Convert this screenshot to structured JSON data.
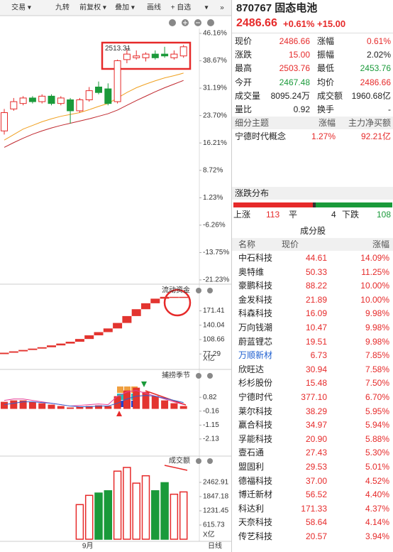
{
  "toolbar": [
    "交易 ▾",
    "九转",
    "前复权 ▾",
    "叠加 ▾",
    "画线",
    "+ 自选",
    "▾",
    "»"
  ],
  "header": {
    "title": "870767 固态电池",
    "price": "2486.66",
    "change_pct": "+0.61%",
    "change": "+15.00"
  },
  "quote": [
    {
      "label": "现价",
      "value": "2486.66",
      "color": "#e62a2a"
    },
    {
      "label": "涨幅",
      "value": "0.61%",
      "color": "#e62a2a"
    },
    {
      "label": "涨跌",
      "value": "15.00",
      "color": "#e62a2a"
    },
    {
      "label": "振幅",
      "value": "2.02%",
      "color": "#222222"
    },
    {
      "label": "最高",
      "value": "2503.76",
      "color": "#e62a2a"
    },
    {
      "label": "最低",
      "value": "2453.76",
      "color": "#1a9a3a"
    },
    {
      "label": "今开",
      "value": "2467.48",
      "color": "#1a9a3a"
    },
    {
      "label": "均价",
      "value": "2486.66",
      "color": "#e62a2a"
    },
    {
      "label": "成交量",
      "value": "8095.24万",
      "color": "#222222"
    },
    {
      "label": "成交额",
      "value": "1960.68亿",
      "color": "#222222"
    },
    {
      "label": "量比",
      "value": "0.92",
      "color": "#222222"
    },
    {
      "label": "换手",
      "value": "-",
      "color": "#222222"
    }
  ],
  "theme": {
    "header": [
      "细分主题",
      "涨幅",
      "主力净买额"
    ],
    "rows": [
      [
        "宁德时代概念",
        "1.27%",
        "92.21亿"
      ]
    ]
  },
  "distribution": {
    "title": "涨跌分布",
    "up_label": "上涨",
    "up": 113,
    "flat_label": "平",
    "flat": 4,
    "down_label": "下跌",
    "down": 108
  },
  "constituents": {
    "title": "成分股",
    "header": [
      "名称",
      "现价",
      "涨幅"
    ],
    "rows": [
      [
        "中石科技",
        "44.61",
        "14.09%"
      ],
      [
        "奥特维",
        "50.33",
        "11.25%"
      ],
      [
        "豪鹏科技",
        "88.22",
        "10.00%"
      ],
      [
        "金发科技",
        "21.89",
        "10.00%"
      ],
      [
        "科森科技",
        "16.09",
        "9.98%"
      ],
      [
        "万向钱潮",
        "10.47",
        "9.98%"
      ],
      [
        "蔚蓝锂芯",
        "19.51",
        "9.98%"
      ],
      [
        "万顺新材",
        "6.73",
        "7.85%"
      ],
      [
        "欣旺达",
        "30.94",
        "7.58%"
      ],
      [
        "杉杉股份",
        "15.48",
        "7.50%"
      ],
      [
        "宁德时代",
        "377.10",
        "6.70%"
      ],
      [
        "莱尔科技",
        "38.29",
        "5.95%"
      ],
      [
        "赢合科技",
        "34.97",
        "5.94%"
      ],
      [
        "孚能科技",
        "20.90",
        "5.88%"
      ],
      [
        "壹石通",
        "27.43",
        "5.30%"
      ],
      [
        "盟固利",
        "29.53",
        "5.01%"
      ],
      [
        "德福科技",
        "37.00",
        "4.52%"
      ],
      [
        "博迁新材",
        "56.52",
        "4.40%"
      ],
      [
        "科达利",
        "171.33",
        "4.37%"
      ],
      [
        "天奈科技",
        "58.64",
        "4.14%"
      ],
      [
        "传艺科技",
        "20.57",
        "3.94%"
      ]
    ]
  },
  "chart_data": [
    {
      "type": "candlestick",
      "annotation": "2513.31",
      "ylim": [
        -21.23,
        46.16
      ],
      "yticks": [
        {
          "value": 46.16,
          "label": "46.16%"
        },
        {
          "value": 38.67,
          "label": "38.67%"
        },
        {
          "value": 31.19,
          "label": "31.19%"
        },
        {
          "value": 23.7,
          "label": "23.70%"
        },
        {
          "value": 16.21,
          "label": "16.21%"
        },
        {
          "value": 8.72,
          "label": "8.72%"
        },
        {
          "value": 1.23,
          "label": "1.23%"
        },
        {
          "value": -6.26,
          "label": "-6.26%"
        },
        {
          "value": -13.75,
          "label": "-13.75%"
        },
        {
          "value": -21.23,
          "label": "-21.23%"
        }
      ],
      "up_color": "#e62a2a",
      "down_color": "#1a9a3a",
      "open": [
        19.5,
        25.5,
        27,
        28.5,
        27.5,
        29,
        27,
        28,
        25,
        28,
        31.5,
        31,
        27.5,
        39,
        39.5,
        39.5,
        40.5,
        40.5,
        39.5,
        40
      ],
      "close": [
        24.5,
        27.5,
        28.5,
        27.5,
        29,
        27,
        28.5,
        25,
        28,
        30.5,
        30,
        27,
        38.7,
        40.5,
        40,
        40.5,
        39.5,
        40,
        40.5,
        42.5
      ],
      "high": [
        25.5,
        28.5,
        29,
        29,
        29.5,
        29.5,
        29,
        28.5,
        28.5,
        31.5,
        33,
        32.5,
        39,
        42,
        41.5,
        41,
        41.5,
        42.5,
        41.5,
        43
      ],
      "low": [
        18.5,
        25,
        26.5,
        27,
        27,
        26.5,
        26.5,
        21.5,
        24.5,
        27.5,
        29.5,
        26.5,
        27,
        38,
        39,
        38.5,
        39,
        39.5,
        39,
        39.5
      ],
      "lines": [
        {
          "color": "#f0a020",
          "values": [
            17,
            18.5,
            20,
            21,
            22,
            22.8,
            23.5,
            24,
            24.5,
            25.3,
            26.2,
            27,
            28.5,
            30,
            31.3,
            32.3,
            33.2,
            34,
            34.6,
            35.3
          ]
        },
        {
          "color": "#c0282e",
          "values": [
            15,
            16.3,
            17.5,
            18.6,
            19.5,
            20.3,
            21,
            21.6,
            22.2,
            22.8,
            23.5,
            24.2,
            25.2,
            26.5,
            27.8,
            29,
            30.2,
            31.3,
            32.3,
            33.3
          ]
        }
      ]
    },
    {
      "type": "step-bar",
      "title": "流动资金",
      "unit": "X亿",
      "color": "#e3342f",
      "ylim": [
        51.3,
        221.9
      ],
      "yticks": [
        171.41,
        140.04,
        108.66,
        77.29
      ],
      "values": [
        80,
        83,
        86,
        89,
        92,
        96,
        100,
        104,
        110,
        118,
        125,
        133,
        145,
        160,
        175,
        188,
        198,
        202,
        202,
        202
      ]
    },
    {
      "type": "bar",
      "title": "捕捞季节",
      "color": "#e3342f",
      "ylim": [
        -3.24,
        2.54
      ],
      "yticks": [
        0.82,
        -0.16,
        -1.15,
        -2.13
      ],
      "values": [
        0.5,
        0.6,
        0.6,
        0.5,
        0.4,
        0.3,
        0.2,
        0.1,
        0.15,
        0.2,
        0.25,
        0.2,
        0.9,
        1.3,
        1.5,
        1.2,
        0.9,
        0.6,
        0.4,
        0.2
      ],
      "lines": [
        {
          "color": "#e8409a",
          "values": [
            0.6,
            0.7,
            0.7,
            0.6,
            0.5,
            0.4,
            0.3,
            0.2,
            0.25,
            0.3,
            0.35,
            0.3,
            0.9,
            1.2,
            1.3,
            1.1,
            0.9,
            0.7,
            0.5,
            0.3
          ]
        },
        {
          "color": "#3060d0",
          "values": [
            0.3,
            0.4,
            0.5,
            0.5,
            0.45,
            0.4,
            0.3,
            0.2,
            0.15,
            0.15,
            0.2,
            0.2,
            0.4,
            0.7,
            0.9,
            0.95,
            0.9,
            0.75,
            0.6,
            0.45
          ]
        }
      ]
    },
    {
      "type": "volume",
      "title": "成交额",
      "unit": "X亿",
      "ylim": [
        0,
        3510
      ],
      "yticks": [
        2462.91,
        1847.18,
        1231.45,
        615.73
      ],
      "categories": [
        null,
        null,
        null,
        null,
        null,
        null,
        null,
        null,
        null,
        "9月",
        null,
        null,
        null,
        null,
        null,
        null,
        null,
        null,
        null,
        null
      ],
      "values": [
        null,
        null,
        null,
        null,
        null,
        null,
        null,
        null,
        1500,
        1900,
        2000,
        2100,
        2950,
        3110,
        2430,
        2750,
        2100,
        2450,
        1950,
        2050
      ]
    }
  ],
  "footer": "日线"
}
